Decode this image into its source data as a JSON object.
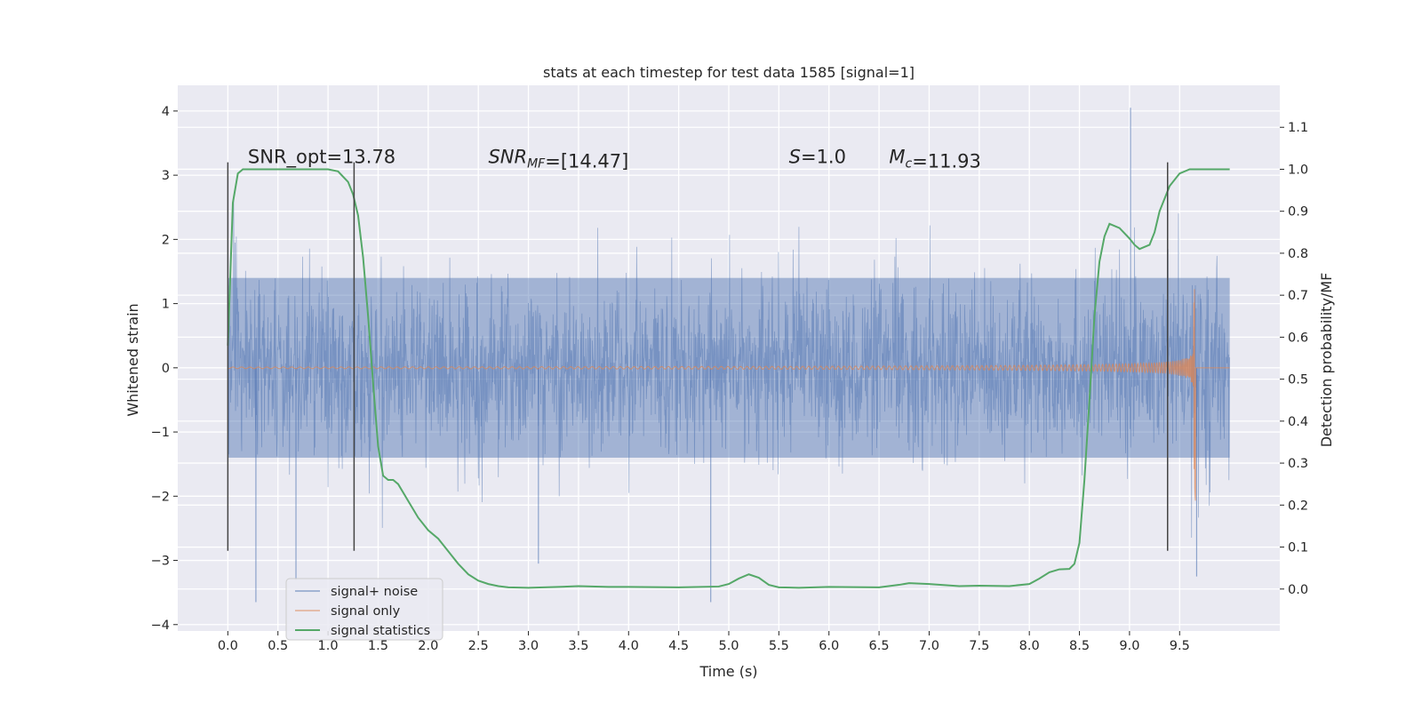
{
  "chart_data": {
    "type": "line",
    "title": "stats at each timestep for test data 1585 [signal=1]",
    "xlabel": "Time (s)",
    "ylabel": "Whitened strain",
    "y2label": "Detection probability/MF",
    "xlim": [
      -0.5,
      10.5
    ],
    "ylim": [
      -4.1,
      4.4
    ],
    "y2lim": [
      -0.1,
      1.2
    ],
    "xticks": [
      0.0,
      0.5,
      1.0,
      1.5,
      2.0,
      2.5,
      3.0,
      3.5,
      4.0,
      4.5,
      5.0,
      5.5,
      6.0,
      6.5,
      7.0,
      7.5,
      8.0,
      8.5,
      9.0,
      9.5
    ],
    "xtick_labels": [
      "0.0",
      "0.5",
      "1.0",
      "1.5",
      "2.0",
      "2.5",
      "3.0",
      "3.5",
      "4.0",
      "4.5",
      "5.0",
      "5.5",
      "6.0",
      "6.5",
      "7.0",
      "7.5",
      "8.0",
      "8.5",
      "9.0",
      "9.5"
    ],
    "yticks": [
      4,
      3,
      2,
      1,
      0,
      -1,
      -2,
      -3,
      -4
    ],
    "ytick_labels": [
      "4",
      "3",
      "2",
      "1",
      "0",
      "−1",
      "−2",
      "−3",
      "−4"
    ],
    "y2ticks": [
      1.1,
      1.0,
      0.9,
      0.8,
      0.7,
      0.6,
      0.5,
      0.4,
      0.3,
      0.2,
      0.1,
      0.0
    ],
    "y2tick_labels": [
      "1.1",
      "1.0",
      "0.9",
      "0.8",
      "0.7",
      "0.6",
      "0.5",
      "0.4",
      "0.3",
      "0.2",
      "0.1",
      "0.0"
    ],
    "grid": true,
    "legend_position": "lower-left",
    "annotations": [
      {
        "text": "SNR_opt=13.78",
        "x": 0.2,
        "y": 3.2
      },
      {
        "text": "SNR_MF=[14.47]",
        "x": 2.6,
        "y": 3.2
      },
      {
        "text": "S=1.0",
        "x": 5.6,
        "y": 3.2
      },
      {
        "text": "M_c=11.93",
        "x": 6.6,
        "y": 3.2
      }
    ],
    "vertical_markers": [
      0.0,
      1.26,
      9.38
    ],
    "series": [
      {
        "name": "signal+ noise",
        "color": "#4c72b0",
        "kind": "noise",
        "time_range": [
          0.0,
          10.0
        ],
        "band": 1.4,
        "peak_max": 4.05,
        "peak_min": -3.65
      },
      {
        "name": "signal only",
        "color": "#dd8452",
        "kind": "chirp",
        "time_range": [
          0.0,
          9.7
        ],
        "peak_time": 9.66,
        "peak_max": 1.6,
        "peak_min": -2.25
      },
      {
        "name": "signal statistics",
        "color": "#55a868",
        "kind": "line",
        "axis": "right",
        "x": [
          0.0,
          0.05,
          0.1,
          0.15,
          0.2,
          0.3,
          0.5,
          0.8,
          1.0,
          1.1,
          1.2,
          1.25,
          1.3,
          1.35,
          1.4,
          1.45,
          1.5,
          1.55,
          1.6,
          1.65,
          1.7,
          1.8,
          1.9,
          2.0,
          2.1,
          2.2,
          2.3,
          2.4,
          2.5,
          2.6,
          2.7,
          2.8,
          3.0,
          3.3,
          3.5,
          3.8,
          4.0,
          4.5,
          4.9,
          5.0,
          5.1,
          5.2,
          5.3,
          5.4,
          5.5,
          5.7,
          6.0,
          6.5,
          6.7,
          6.8,
          7.0,
          7.3,
          7.5,
          7.8,
          8.0,
          8.1,
          8.2,
          8.3,
          8.4,
          8.45,
          8.5,
          8.55,
          8.6,
          8.65,
          8.7,
          8.75,
          8.8,
          8.9,
          9.0,
          9.05,
          9.1,
          9.2,
          9.25,
          9.3,
          9.4,
          9.5,
          9.6,
          9.7,
          10.0
        ],
        "y": [
          0.58,
          0.92,
          0.99,
          1.0,
          1.0,
          1.0,
          1.0,
          1.0,
          1.0,
          0.995,
          0.97,
          0.94,
          0.89,
          0.79,
          0.65,
          0.49,
          0.34,
          0.27,
          0.26,
          0.26,
          0.25,
          0.21,
          0.17,
          0.14,
          0.12,
          0.09,
          0.06,
          0.035,
          0.02,
          0.012,
          0.007,
          0.004,
          0.003,
          0.005,
          0.007,
          0.005,
          0.005,
          0.004,
          0.006,
          0.012,
          0.025,
          0.035,
          0.027,
          0.01,
          0.004,
          0.003,
          0.005,
          0.004,
          0.01,
          0.014,
          0.012,
          0.007,
          0.008,
          0.007,
          0.012,
          0.025,
          0.04,
          0.047,
          0.048,
          0.06,
          0.11,
          0.26,
          0.45,
          0.65,
          0.78,
          0.84,
          0.87,
          0.86,
          0.835,
          0.82,
          0.81,
          0.82,
          0.85,
          0.9,
          0.96,
          0.99,
          1.0,
          1.0,
          1.0
        ]
      }
    ]
  }
}
